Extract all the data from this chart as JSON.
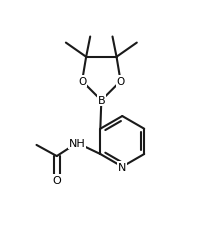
{
  "bg_color": "#ffffff",
  "line_color": "#1a1a1a",
  "line_width": 1.5,
  "figsize": [
    2.04,
    2.28
  ],
  "dpi": 100,
  "xlim": [
    0.0,
    1.0
  ],
  "ylim": [
    0.0,
    1.0
  ]
}
